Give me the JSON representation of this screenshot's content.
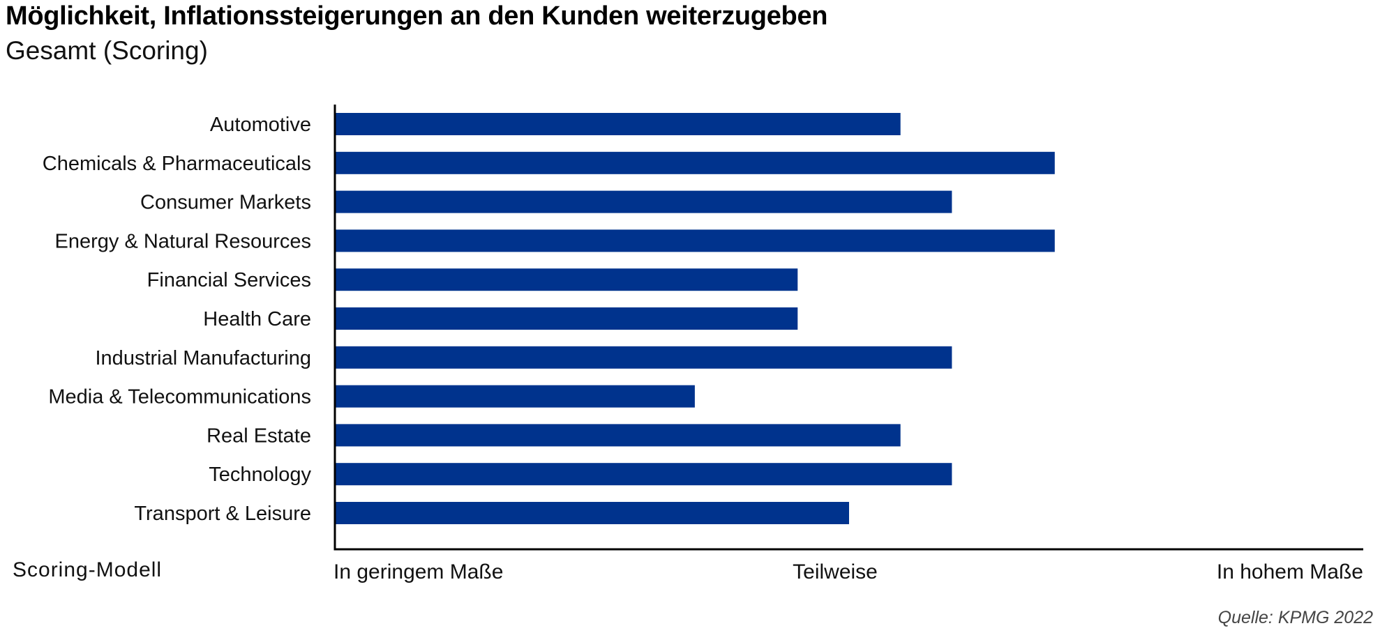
{
  "title": "Möglichkeit, Inflationssteigerungen an den Kunden weiterzugeben",
  "subtitle": "Gesamt (Scoring)",
  "source": "Quelle: KPMG 2022",
  "chart_data": {
    "type": "bar",
    "orientation": "horizontal",
    "title": "Möglichkeit, Inflationssteigerungen an den Kunden weiterzugeben",
    "subtitle": "Gesamt (Scoring)",
    "categories": [
      "Automotive",
      "Chemicals & Pharmaceuticals",
      "Consumer Markets",
      "Energy & Natural Resources",
      "Financial Services",
      "Health Care",
      "Industrial Manufacturing",
      "Media & Telecommunications",
      "Real Estate",
      "Technology",
      "Transport & Leisure"
    ],
    "values": [
      2.1,
      2.4,
      2.2,
      2.4,
      1.9,
      1.9,
      2.2,
      1.7,
      2.1,
      2.2,
      2.0
    ],
    "xlim": [
      1,
      3
    ],
    "x_ticks": [
      1,
      2,
      3
    ],
    "x_tick_labels": [
      "In geringem Maße",
      "Teilweise",
      "In hohem Maße"
    ],
    "x_axis_label": "Scoring-Modell",
    "grid": false,
    "bar_color": "#00338d"
  }
}
